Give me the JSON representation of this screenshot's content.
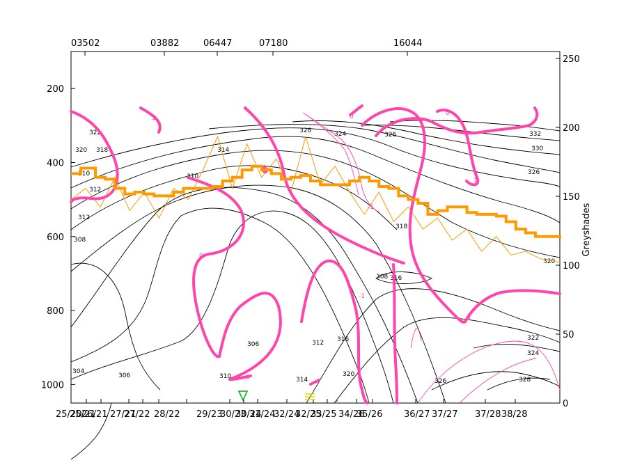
{
  "chart_data": {
    "type": "line",
    "title": "",
    "x_tick_labels": [
      "25/20",
      "25/21",
      "26/21",
      "27/21",
      "27/22",
      "28/22",
      "29/23",
      "30/23",
      "30/24",
      "31/24",
      "32/24",
      "32/25",
      "33/25",
      "34/26",
      "35/26",
      "36/27",
      "37/27",
      "37/28",
      "38/28"
    ],
    "top_station_labels": [
      "03502",
      "03882",
      "06447",
      "07180",
      "16044"
    ],
    "left_axis": {
      "ticks": [
        200,
        400,
        600,
        800,
        1000
      ],
      "range": [
        1050,
        100
      ],
      "inverted": true
    },
    "right_axis": {
      "label": "Greyshades",
      "ticks": [
        0,
        50,
        100,
        150,
        200,
        250
      ],
      "range": [
        0,
        250
      ]
    },
    "contour_labels_black": [
      "304",
      "306",
      "306",
      "308",
      "308",
      "310",
      "310",
      "310",
      "312",
      "312",
      "312",
      "314",
      "314",
      "316",
      "316",
      "318",
      "318",
      "320",
      "320",
      "320",
      "322",
      "322",
      "324",
      "324",
      "326",
      "326",
      "326",
      "328",
      "328",
      "330",
      "332"
    ],
    "contour_labels_pink": [
      "0",
      "0",
      "0",
      "0",
      "0",
      "1",
      "1",
      "-1",
      "-1"
    ],
    "series": [
      {
        "color": "#ff9900",
        "style": "thick-step",
        "x": [
          0,
          2,
          5,
          7,
          9,
          11,
          13,
          15,
          17,
          19,
          21,
          23,
          25,
          27,
          29,
          31,
          33,
          35,
          37,
          39,
          41,
          43,
          45,
          47,
          49,
          51,
          53,
          55,
          57,
          59,
          61,
          63,
          65,
          67,
          69,
          71,
          73,
          75,
          77,
          79,
          81,
          83,
          85,
          87,
          89,
          91,
          93,
          95,
          97,
          99,
          100
        ],
        "y": [
          430,
          415,
          440,
          445,
          470,
          485,
          480,
          485,
          490,
          490,
          480,
          470,
          470,
          470,
          465,
          450,
          440,
          420,
          410,
          420,
          430,
          445,
          440,
          435,
          450,
          460,
          460,
          460,
          450,
          440,
          450,
          465,
          470,
          490,
          500,
          510,
          540,
          530,
          520,
          520,
          535,
          540,
          540,
          545,
          560,
          580,
          590,
          600,
          600,
          600,
          605
        ]
      },
      {
        "color": "#ff9900",
        "style": "thin-wiggly",
        "x": [
          0,
          3,
          6,
          9,
          12,
          15,
          18,
          21,
          24,
          27,
          30,
          33,
          36,
          39,
          42,
          45,
          48,
          51,
          54,
          57,
          60,
          63,
          66,
          69,
          72,
          75,
          78,
          81,
          84,
          87,
          90,
          93,
          96,
          100
        ],
        "y": [
          500,
          470,
          520,
          440,
          530,
          480,
          550,
          470,
          500,
          420,
          330,
          470,
          350,
          440,
          390,
          480,
          330,
          460,
          410,
          480,
          540,
          480,
          560,
          520,
          580,
          550,
          610,
          580,
          640,
          600,
          650,
          640,
          660,
          670
        ]
      }
    ],
    "colors": {
      "contour": "#000000",
      "pink": "#ff44aa",
      "orange": "#ff9900",
      "green_marker": "#00aa00",
      "yellow_marker": "#dddd00"
    },
    "grid": false
  }
}
